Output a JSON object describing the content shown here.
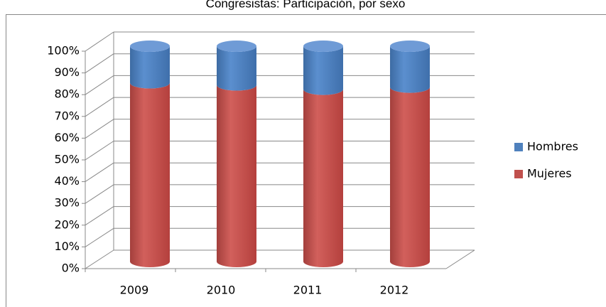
{
  "chart_data": {
    "type": "bar3d_stacked",
    "title": "Congresistas: Participación, por sexo",
    "categories": [
      "2009",
      "2010",
      "2011",
      "2012"
    ],
    "series": [
      {
        "name": "Mujeres",
        "color": "#c0504d",
        "values": [
          83,
          82,
          80,
          81
        ]
      },
      {
        "name": "Hombres",
        "color": "#4f81bd",
        "values": [
          17,
          18,
          20,
          19
        ]
      }
    ],
    "ylim": [
      0,
      100
    ],
    "yticks": [
      {
        "value": 0,
        "label": "0%"
      },
      {
        "value": 10,
        "label": "10%"
      },
      {
        "value": 20,
        "label": "20%"
      },
      {
        "value": 30,
        "label": "30%"
      },
      {
        "value": 40,
        "label": "40%"
      },
      {
        "value": 50,
        "label": "50%"
      },
      {
        "value": 60,
        "label": "60%"
      },
      {
        "value": 70,
        "label": "70%"
      },
      {
        "value": 80,
        "label": "80%"
      },
      {
        "value": 90,
        "label": "90%"
      },
      {
        "value": 100,
        "label": "100%"
      }
    ],
    "grid": true,
    "legend": "right"
  }
}
